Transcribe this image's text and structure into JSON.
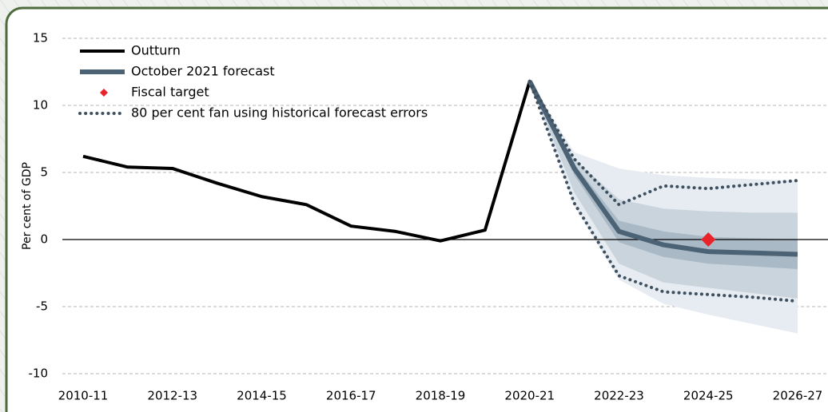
{
  "chart_data": {
    "type": "line",
    "categories": [
      "2010-11",
      null,
      "2012-13",
      null,
      "2014-15",
      null,
      "2016-17",
      null,
      "2018-19",
      null,
      "2020-21",
      null,
      "2022-23",
      null,
      "2024-25",
      null,
      "2026-27"
    ],
    "ylabel": "Per cent of GDP",
    "ylim": [
      -10,
      15
    ],
    "yticks": [
      -10,
      -5,
      0,
      5,
      10,
      15
    ],
    "grid": true,
    "legend": "upper-left",
    "bands": [
      {
        "color": "#e6ecf1",
        "upper": [
          null,
          null,
          null,
          null,
          null,
          null,
          null,
          null,
          null,
          null,
          11.8,
          6.5,
          5.3,
          4.8,
          4.6,
          4.5,
          4.4
        ],
        "lower": [
          null,
          null,
          null,
          null,
          null,
          null,
          null,
          null,
          null,
          null,
          11.8,
          2.5,
          -3.0,
          -4.8,
          -5.6,
          -6.3,
          -7.0
        ]
      },
      {
        "color": "#c9d4dd",
        "upper": [
          null,
          null,
          null,
          null,
          null,
          null,
          null,
          null,
          null,
          null,
          11.8,
          6.0,
          3.0,
          2.3,
          2.1,
          2.0,
          2.0
        ],
        "lower": [
          null,
          null,
          null,
          null,
          null,
          null,
          null,
          null,
          null,
          null,
          11.8,
          3.5,
          -1.8,
          -3.2,
          -3.6,
          -4.0,
          -4.4
        ]
      },
      {
        "color": "#a9b9c6",
        "upper": [
          null,
          null,
          null,
          null,
          null,
          null,
          null,
          null,
          null,
          null,
          11.8,
          5.6,
          1.4,
          0.6,
          0.2,
          0.1,
          0.0
        ],
        "lower": [
          null,
          null,
          null,
          null,
          null,
          null,
          null,
          null,
          null,
          null,
          11.8,
          4.8,
          -0.2,
          -1.3,
          -1.8,
          -2.0,
          -2.2
        ]
      }
    ],
    "series": [
      {
        "name": "Outturn",
        "color": "#000000",
        "style": "solid",
        "values": [
          6.2,
          5.4,
          5.3,
          4.2,
          3.2,
          2.6,
          1.0,
          0.6,
          -0.1,
          0.7,
          11.8,
          null,
          null,
          null,
          null,
          null,
          null
        ]
      },
      {
        "name": "October 2021 forecast",
        "color": "#4b6375",
        "style": "thick",
        "values": [
          null,
          null,
          null,
          null,
          null,
          null,
          null,
          null,
          null,
          null,
          11.8,
          5.3,
          0.6,
          -0.4,
          -0.9,
          -1.0,
          -1.1
        ]
      },
      {
        "name": "Fiscal target",
        "color": "#e8232a",
        "style": "marker",
        "values": [
          null,
          null,
          null,
          null,
          null,
          null,
          null,
          null,
          null,
          null,
          null,
          null,
          null,
          null,
          0,
          null,
          null
        ]
      },
      {
        "name": "80 per cent fan using historical forecast errors",
        "color": "#3e5060",
        "style": "dotted",
        "values": [
          null,
          null,
          null,
          null,
          null,
          null,
          null,
          null,
          null,
          null,
          11.8,
          6.0,
          2.6,
          4.0,
          3.8,
          4.1,
          4.4
        ],
        "lower_values": [
          null,
          null,
          null,
          null,
          null,
          null,
          null,
          null,
          null,
          null,
          11.8,
          2.7,
          -2.7,
          -3.9,
          -4.1,
          -4.3,
          -4.6
        ]
      }
    ]
  }
}
